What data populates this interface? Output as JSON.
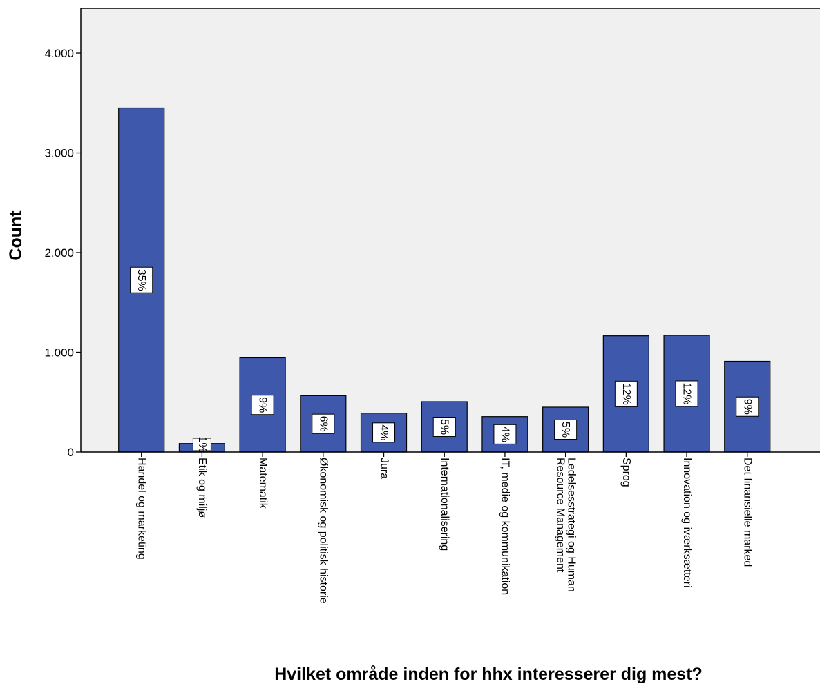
{
  "chart_data": {
    "type": "bar",
    "title": "",
    "xlabel": "Hvilket område inden for hhx interesserer dig mest?",
    "ylabel": "Count",
    "ylim": [
      0,
      4450
    ],
    "yticks": [
      0,
      1000,
      2000,
      3000,
      4000
    ],
    "ytick_labels": [
      "0",
      "1.000",
      "2.000",
      "3.000",
      "4.000"
    ],
    "categories": [
      "Handel og marketing",
      "Etik og miljø",
      "Matematik",
      "Økonomisk og politisk historie",
      "Jura",
      "Internationalisering",
      "IT, medie og kommunikation",
      "Ledelsesstrategi og Human Resource Management",
      "Sprog",
      "Innovation og iværksætteri",
      "Det finansielle marked"
    ],
    "category_label_lines": [
      [
        "Handel og marketing"
      ],
      [
        "Etik og miljø"
      ],
      [
        "Matematik"
      ],
      [
        "Økonomisk og politisk historie"
      ],
      [
        "Jura"
      ],
      [
        "Internationalisering"
      ],
      [
        "IT, medie og kommunikation"
      ],
      [
        "Ledelsesstrategi og Human",
        "Resource Management"
      ],
      [
        "Sprog"
      ],
      [
        "Innovation og iværksætteri"
      ],
      [
        "Det finansielle marked"
      ]
    ],
    "values": [
      3450,
      85,
      945,
      565,
      390,
      505,
      355,
      450,
      1165,
      1170,
      910
    ],
    "data_labels": [
      "35%",
      "1%",
      "9%",
      "6%",
      "4%",
      "5%",
      "4%",
      "5%",
      "12%",
      "12%",
      "9%"
    ],
    "grid": false,
    "legend": "none",
    "colors": {
      "bar_fill": "#3E58AB",
      "bar_stroke": "#000000",
      "plot_background": "#F0F0F0",
      "axis": "#000000",
      "label_box_fill": "#FFFFFF"
    }
  }
}
